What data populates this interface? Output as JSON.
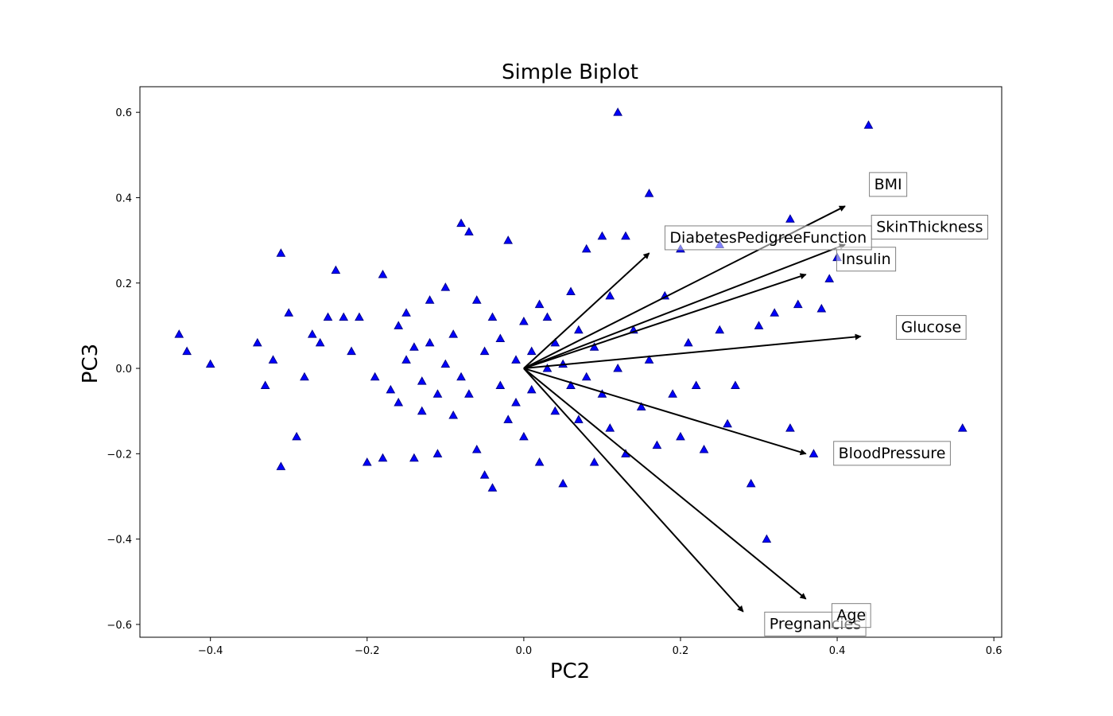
{
  "chart_data": {
    "type": "scatter",
    "title": "Simple Biplot",
    "xlabel": "PC2",
    "ylabel": "PC3",
    "xlim": [
      -0.49,
      0.61
    ],
    "ylim": [
      -0.63,
      0.66
    ],
    "x_ticks": [
      -0.4,
      -0.2,
      0.0,
      0.2,
      0.4,
      0.6
    ],
    "x_tick_labels": [
      "−0.4",
      "−0.2",
      "0.0",
      "0.2",
      "0.4",
      "0.6"
    ],
    "y_ticks": [
      -0.6,
      -0.4,
      -0.2,
      0.0,
      0.2,
      0.4,
      0.6
    ],
    "y_tick_labels": [
      "−0.6",
      "−0.4",
      "−0.2",
      "0.0",
      "0.2",
      "0.4",
      "0.6"
    ],
    "grid": false,
    "marker": "triangle",
    "point_color": "#0000ff",
    "point_edge_color": "#00008b",
    "loadings": [
      {
        "name": "Pregnancies",
        "x": 0.28,
        "y": -0.57,
        "label_x": 0.372,
        "label_y": -0.6
      },
      {
        "name": "Glucose",
        "x": 0.43,
        "y": 0.075,
        "label_x": 0.52,
        "label_y": 0.095
      },
      {
        "name": "BloodPressure",
        "x": 0.36,
        "y": -0.2,
        "label_x": 0.47,
        "label_y": -0.2
      },
      {
        "name": "SkinThickness",
        "x": 0.41,
        "y": 0.29,
        "label_x": 0.518,
        "label_y": 0.33
      },
      {
        "name": "Insulin",
        "x": 0.36,
        "y": 0.22,
        "label_x": 0.437,
        "label_y": 0.255
      },
      {
        "name": "BMI",
        "x": 0.41,
        "y": 0.38,
        "label_x": 0.465,
        "label_y": 0.43
      },
      {
        "name": "DiabetesPedigreeFunction",
        "x": 0.16,
        "y": 0.27,
        "label_x": 0.312,
        "label_y": 0.305
      },
      {
        "name": "Age",
        "x": 0.36,
        "y": -0.54,
        "label_x": 0.418,
        "label_y": -0.58
      }
    ],
    "points": [
      [
        -0.44,
        0.08
      ],
      [
        -0.43,
        0.04
      ],
      [
        -0.4,
        0.01
      ],
      [
        -0.34,
        0.06
      ],
      [
        -0.33,
        -0.04
      ],
      [
        -0.32,
        0.02
      ],
      [
        -0.31,
        0.27
      ],
      [
        -0.31,
        -0.23
      ],
      [
        -0.3,
        0.13
      ],
      [
        -0.29,
        -0.16
      ],
      [
        -0.28,
        -0.02
      ],
      [
        -0.27,
        0.08
      ],
      [
        -0.26,
        0.06
      ],
      [
        -0.25,
        0.12
      ],
      [
        -0.24,
        0.23
      ],
      [
        -0.23,
        0.12
      ],
      [
        -0.22,
        0.04
      ],
      [
        -0.21,
        0.12
      ],
      [
        -0.2,
        -0.22
      ],
      [
        -0.19,
        -0.02
      ],
      [
        -0.18,
        0.22
      ],
      [
        -0.18,
        -0.21
      ],
      [
        -0.17,
        -0.05
      ],
      [
        -0.16,
        0.1
      ],
      [
        -0.16,
        -0.08
      ],
      [
        -0.15,
        0.02
      ],
      [
        -0.15,
        0.13
      ],
      [
        -0.14,
        -0.21
      ],
      [
        -0.14,
        0.05
      ],
      [
        -0.13,
        -0.03
      ],
      [
        -0.13,
        -0.1
      ],
      [
        -0.12,
        0.06
      ],
      [
        -0.12,
        0.16
      ],
      [
        -0.11,
        -0.06
      ],
      [
        -0.11,
        -0.2
      ],
      [
        -0.1,
        0.01
      ],
      [
        -0.1,
        0.19
      ],
      [
        -0.09,
        -0.11
      ],
      [
        -0.09,
        0.08
      ],
      [
        -0.08,
        0.34
      ],
      [
        -0.08,
        -0.02
      ],
      [
        -0.07,
        0.32
      ],
      [
        -0.07,
        -0.06
      ],
      [
        -0.06,
        0.16
      ],
      [
        -0.06,
        -0.19
      ],
      [
        -0.05,
        -0.25
      ],
      [
        -0.05,
        0.04
      ],
      [
        -0.04,
        -0.28
      ],
      [
        -0.04,
        0.12
      ],
      [
        -0.03,
        -0.04
      ],
      [
        -0.03,
        0.07
      ],
      [
        -0.02,
        -0.12
      ],
      [
        -0.02,
        0.3
      ],
      [
        -0.01,
        0.02
      ],
      [
        -0.01,
        -0.08
      ],
      [
        0.0,
        0.11
      ],
      [
        0.0,
        -0.16
      ],
      [
        0.01,
        0.04
      ],
      [
        0.01,
        -0.05
      ],
      [
        0.02,
        0.15
      ],
      [
        0.02,
        -0.22
      ],
      [
        0.03,
        0.0
      ],
      [
        0.03,
        0.12
      ],
      [
        0.04,
        -0.1
      ],
      [
        0.04,
        0.06
      ],
      [
        0.05,
        -0.27
      ],
      [
        0.05,
        0.01
      ],
      [
        0.06,
        0.18
      ],
      [
        0.06,
        -0.04
      ],
      [
        0.07,
        0.09
      ],
      [
        0.07,
        -0.12
      ],
      [
        0.08,
        0.28
      ],
      [
        0.08,
        -0.02
      ],
      [
        0.09,
        0.05
      ],
      [
        0.09,
        -0.22
      ],
      [
        0.1,
        0.31
      ],
      [
        0.1,
        -0.06
      ],
      [
        0.11,
        0.17
      ],
      [
        0.11,
        -0.14
      ],
      [
        0.12,
        0.6
      ],
      [
        0.12,
        0.0
      ],
      [
        0.13,
        0.31
      ],
      [
        0.13,
        -0.2
      ],
      [
        0.14,
        0.09
      ],
      [
        0.15,
        -0.09
      ],
      [
        0.16,
        0.41
      ],
      [
        0.16,
        0.02
      ],
      [
        0.17,
        -0.18
      ],
      [
        0.18,
        0.17
      ],
      [
        0.19,
        -0.06
      ],
      [
        0.2,
        0.28
      ],
      [
        0.2,
        -0.16
      ],
      [
        0.21,
        0.06
      ],
      [
        0.22,
        -0.04
      ],
      [
        0.23,
        -0.19
      ],
      [
        0.25,
        0.29
      ],
      [
        0.25,
        0.09
      ],
      [
        0.26,
        -0.13
      ],
      [
        0.27,
        -0.04
      ],
      [
        0.29,
        -0.27
      ],
      [
        0.3,
        0.1
      ],
      [
        0.31,
        -0.4
      ],
      [
        0.32,
        0.13
      ],
      [
        0.34,
        0.35
      ],
      [
        0.34,
        -0.14
      ],
      [
        0.35,
        0.15
      ],
      [
        0.38,
        0.14
      ],
      [
        0.39,
        0.21
      ],
      [
        0.4,
        0.26
      ],
      [
        0.44,
        0.57
      ],
      [
        0.56,
        -0.14
      ],
      [
        0.37,
        -0.2
      ]
    ]
  }
}
